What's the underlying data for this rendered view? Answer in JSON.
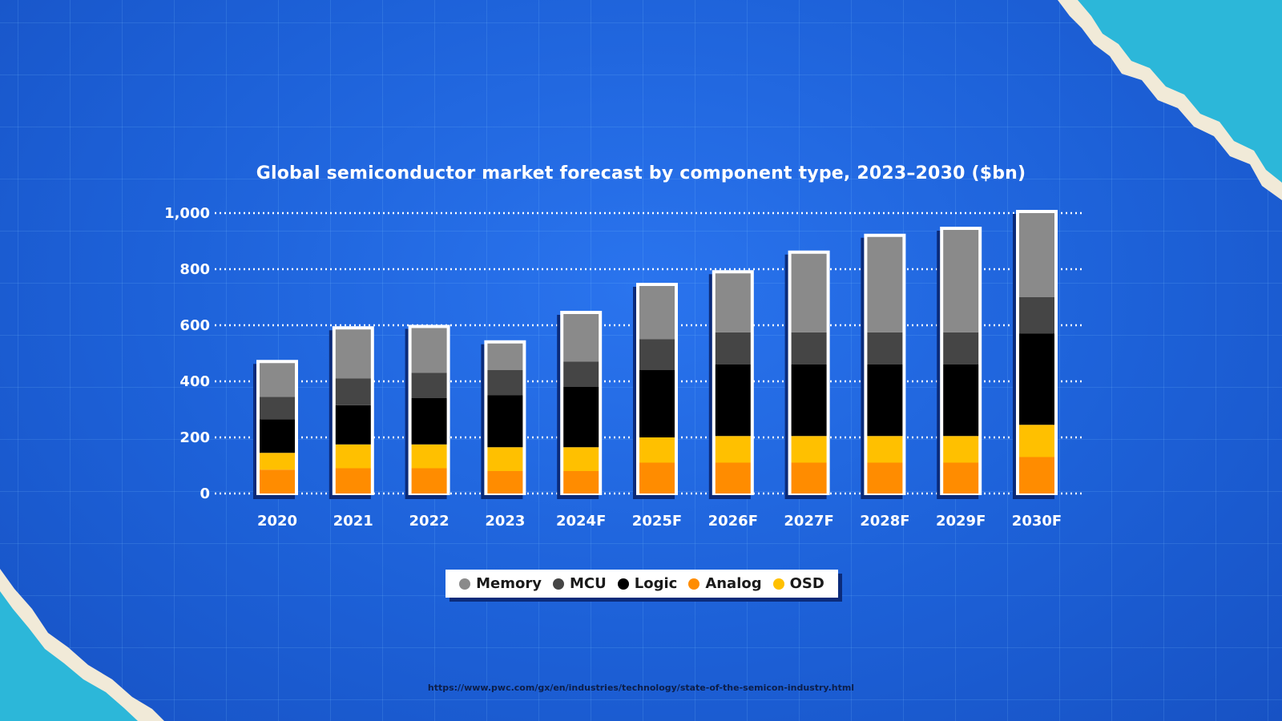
{
  "chart_data": {
    "type": "bar",
    "stacked": true,
    "title": "Global semiconductor market forecast by component type, 2023–2030 ($bn)",
    "categories": [
      "2020",
      "2021",
      "2022",
      "2023",
      "2024F",
      "2025F",
      "2026F",
      "2027F",
      "2028F",
      "2029F",
      "2030F"
    ],
    "ylim": [
      0,
      1000
    ],
    "yticks": [
      0,
      200,
      400,
      600,
      800,
      1000
    ],
    "ytick_labels": [
      "0",
      "200",
      "400",
      "600",
      "800",
      "1,000"
    ],
    "series": [
      {
        "name": "Analog",
        "color": "#ff8c00",
        "values": [
          85,
          90,
          90,
          80,
          80,
          110,
          110,
          110,
          110,
          110,
          130
        ]
      },
      {
        "name": "OSD",
        "color": "#ffc000",
        "values": [
          60,
          85,
          85,
          85,
          85,
          90,
          95,
          95,
          95,
          95,
          115
        ]
      },
      {
        "name": "Logic",
        "color": "#000000",
        "values": [
          120,
          140,
          165,
          185,
          215,
          240,
          255,
          255,
          255,
          255,
          325
        ]
      },
      {
        "name": "MCU",
        "color": "#454545",
        "values": [
          80,
          95,
          90,
          90,
          90,
          110,
          115,
          115,
          115,
          115,
          130
        ]
      },
      {
        "name": "Memory",
        "color": "#8a8a8a",
        "values": [
          120,
          175,
          160,
          95,
          170,
          190,
          210,
          280,
          340,
          365,
          300
        ]
      }
    ],
    "legend": {
      "placement": "bottom",
      "items": [
        {
          "name": "Memory",
          "color": "#8a8a8a"
        },
        {
          "name": "MCU",
          "color": "#454545"
        },
        {
          "name": "Logic",
          "color": "#000000"
        },
        {
          "name": "Analog",
          "color": "#ff8c00"
        },
        {
          "name": "OSD",
          "color": "#ffc000"
        }
      ]
    },
    "grid": true
  },
  "source_url": "https://www.pwc.com/gx/en/industries/technology/state-of-the-semicon-industry.html"
}
